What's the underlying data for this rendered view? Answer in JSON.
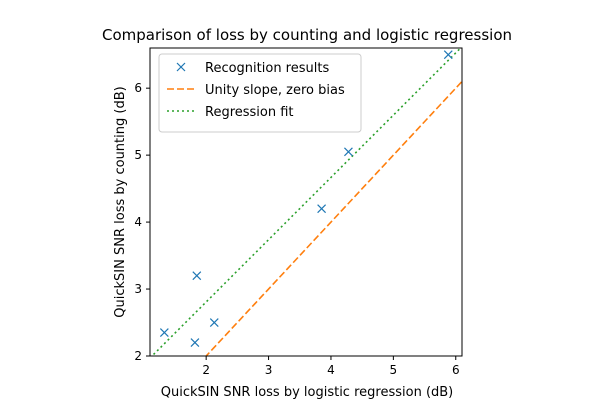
{
  "chart_data": {
    "type": "scatter",
    "title": "Comparison of loss by counting and logistic regression",
    "xlabel": "QuickSIN SNR loss by logistic regression (dB)",
    "ylabel": "QuickSIN SNR loss by counting (dB)",
    "xlim": [
      1.1,
      6.1
    ],
    "ylim": [
      2.0,
      6.6
    ],
    "xticks": [
      2,
      3,
      4,
      5,
      6
    ],
    "yticks": [
      2,
      3,
      4,
      5,
      6
    ],
    "grid": false,
    "legend_position": "top-left",
    "series": [
      {
        "name": "Recognition results",
        "kind": "markers",
        "marker": "x",
        "color": "#1f77b4",
        "x": [
          1.33,
          1.82,
          1.85,
          2.13,
          3.85,
          4.28,
          5.88
        ],
        "y": [
          2.35,
          2.2,
          3.2,
          2.5,
          4.2,
          5.05,
          6.5
        ]
      },
      {
        "name": "Unity slope, zero bias",
        "kind": "line",
        "style": "dashed",
        "color": "#ff7f0e",
        "x": [
          1.1,
          6.1
        ],
        "y": [
          1.1,
          6.1
        ]
      },
      {
        "name": "Regression fit",
        "kind": "line",
        "style": "dotted",
        "color": "#2ca02c",
        "x": [
          1.1,
          6.1
        ],
        "y": [
          1.97,
          6.62
        ]
      }
    ]
  }
}
